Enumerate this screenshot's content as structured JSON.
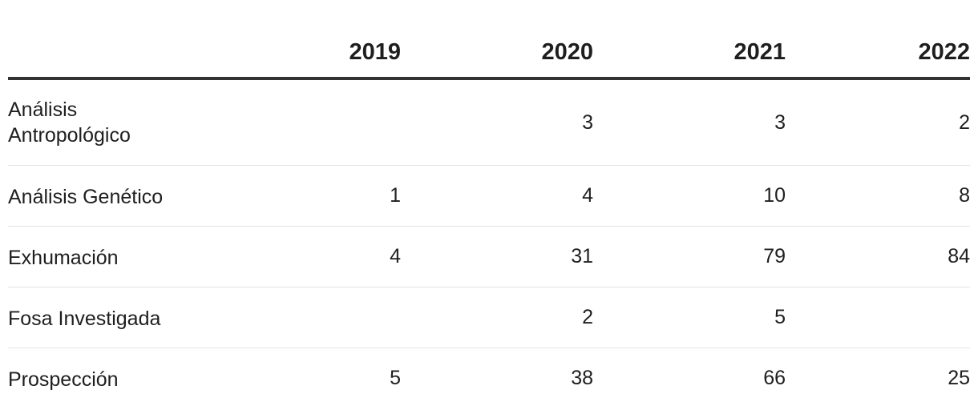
{
  "chart_data": {
    "type": "table",
    "columns": [
      "",
      "2019",
      "2020",
      "2021",
      "2022"
    ],
    "rows": [
      {
        "label": "Análisis Antropológico",
        "label_lines": [
          "Análisis",
          "Antropológico"
        ],
        "values": [
          "",
          "3",
          "3",
          "2"
        ]
      },
      {
        "label": "Análisis Genético",
        "label_lines": [
          "Análisis Genético"
        ],
        "values": [
          "1",
          "4",
          "10",
          "8"
        ]
      },
      {
        "label": "Exhumación",
        "label_lines": [
          "Exhumación"
        ],
        "values": [
          "4",
          "31",
          "79",
          "84"
        ]
      },
      {
        "label": "Fosa Investigada",
        "label_lines": [
          "Fosa Investigada"
        ],
        "values": [
          "",
          "2",
          "5",
          ""
        ]
      },
      {
        "label": "Prospección",
        "label_lines": [
          "Prospección"
        ],
        "values": [
          "5",
          "38",
          "66",
          "25"
        ]
      }
    ]
  },
  "colors": {
    "text": "#1e1e1e",
    "header_rule": "#333333",
    "row_rule": "#e4e4e4",
    "background": "#ffffff"
  }
}
